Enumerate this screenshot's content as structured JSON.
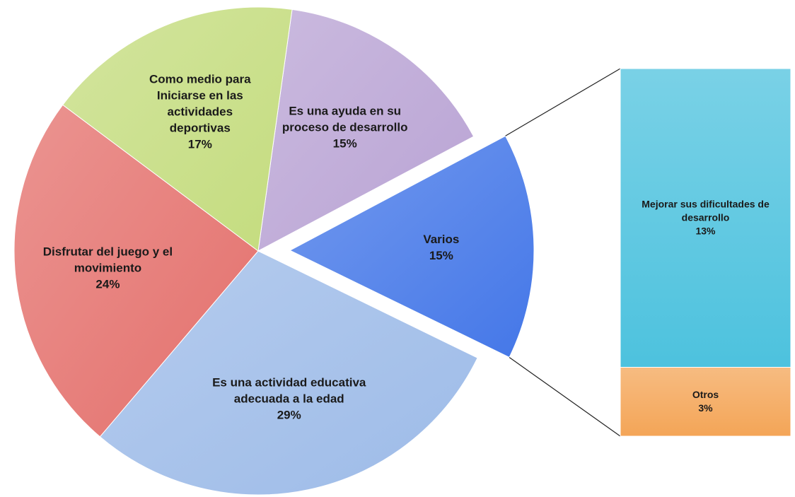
{
  "chart_data": {
    "type": "pie",
    "categories": [
      "Es una ayuda en su proceso de desarrollo",
      "Varios",
      "Es una actividad educativa adecuada a la edad",
      "Disfrutar del juego y el movimiento",
      "Como medio para Iniciarse en las actividades deportivas"
    ],
    "values": [
      15,
      15,
      29,
      24,
      17
    ],
    "value_labels": [
      "15%",
      "15%",
      "29%",
      "24%",
      "17%"
    ],
    "colors": [
      "#b9a3d4",
      "#4477e8",
      "#9dbbe8",
      "#e4706c",
      "#c4dc7e"
    ],
    "exploded": 1,
    "breakdown": {
      "type": "bar",
      "categories": [
        "Mejorar sus dificultades de desarrollo",
        "Otros"
      ],
      "values": [
        13,
        3
      ],
      "value_labels": [
        "13%",
        "3%"
      ],
      "colors": [
        "#4dc2de",
        "#f4a557"
      ]
    }
  }
}
